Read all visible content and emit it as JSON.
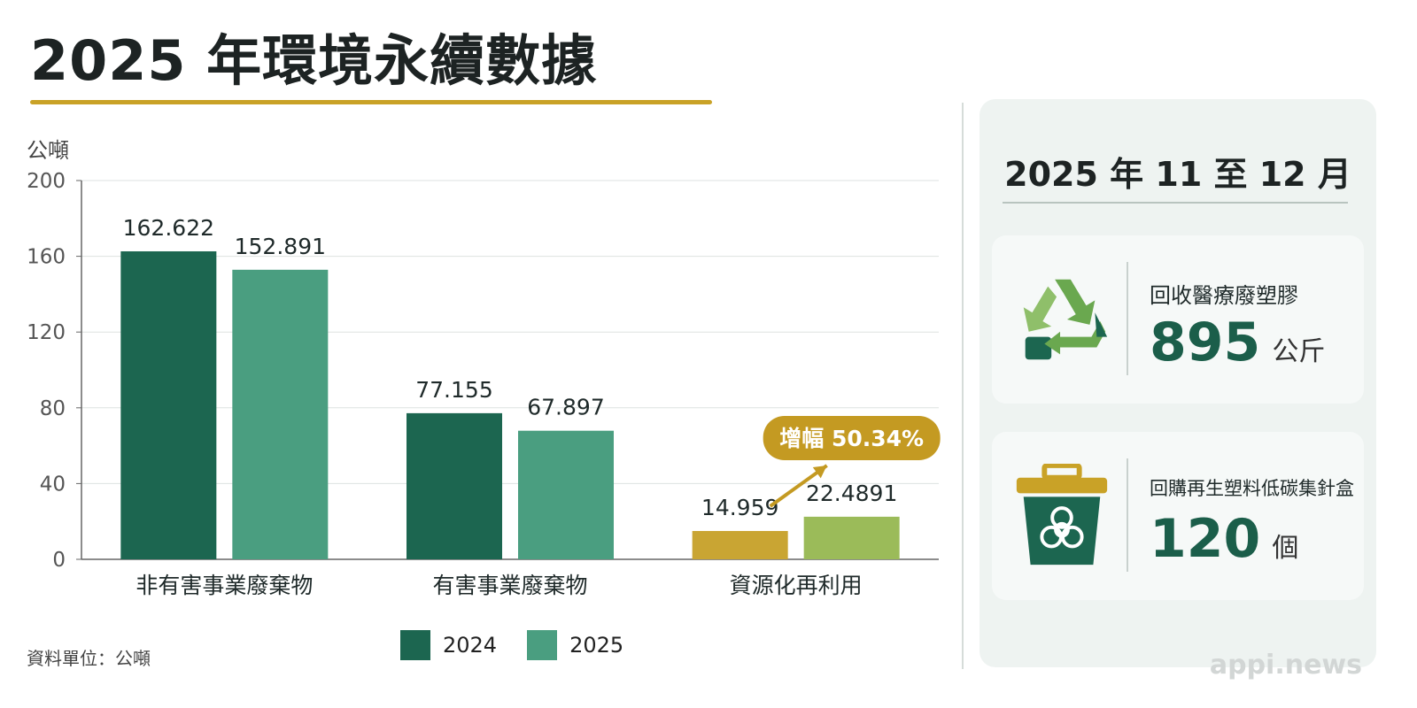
{
  "title": "2025 年環境永續數據",
  "footnote": "資料單位：公噸",
  "legend": [
    {
      "label": "2024",
      "color": "#1c6650"
    },
    {
      "label": "2025",
      "color": "#4a9e80"
    }
  ],
  "chart_data": {
    "type": "bar",
    "ylabel": "公噸",
    "ylim": [
      0,
      200
    ],
    "yticks": [
      0,
      40,
      80,
      120,
      160,
      200
    ],
    "grid": true,
    "categories": [
      "非有害事業廢棄物",
      "有害事業廢棄物",
      "資源化再利用"
    ],
    "series": [
      {
        "name": "2024",
        "values": [
          162.622,
          77.155,
          14.959
        ],
        "labels": [
          "162.622",
          "77.155",
          "14.959"
        ]
      },
      {
        "name": "2025",
        "values": [
          152.891,
          67.897,
          22.4891
        ],
        "labels": [
          "152.891",
          "67.897",
          "22.4891"
        ]
      }
    ],
    "bar_colors": [
      [
        "#1c6650",
        "#1c6650",
        "#c9a533"
      ],
      [
        "#4a9e80",
        "#4a9e80",
        "#9bbb59"
      ]
    ],
    "annotation": {
      "text": "增幅 50.34%",
      "category_index": 2,
      "color": "#c49a22"
    }
  },
  "side_panel": {
    "period": "2025 年 11 至 12 月",
    "cards": [
      {
        "icon": "recycle-icon",
        "label": "回收醫療廢塑膠",
        "value": "895",
        "unit": "公斤"
      },
      {
        "icon": "biohazard-bin-icon",
        "label": "回購再生塑料低碳集針盒",
        "value": "120",
        "unit": "個"
      }
    ]
  },
  "watermark": "appi.news"
}
